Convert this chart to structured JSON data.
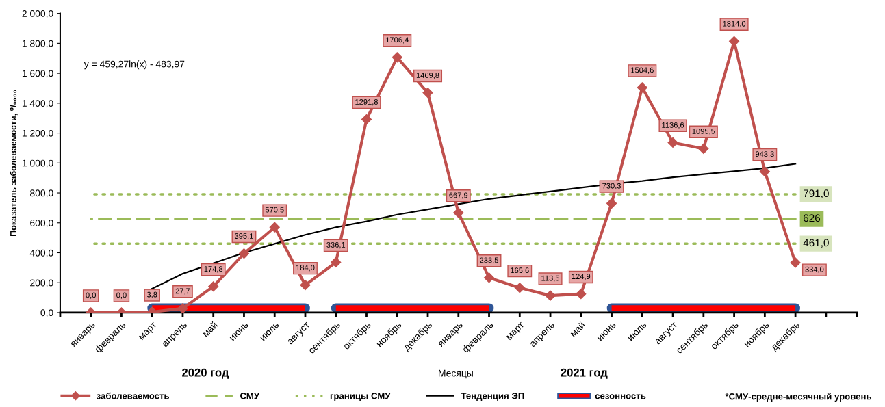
{
  "chart_data": {
    "type": "line",
    "ylabel": "Показатель заболеваемости, ⁰/₀₀₀₀",
    "categories": [
      "январь",
      "февраль",
      "март",
      "апрель",
      "май",
      "июнь",
      "июль",
      "август",
      "сентябрь",
      "октябрь",
      "ноябрь",
      "декабрь",
      "январь",
      "февраль",
      "март",
      "апрель",
      "май",
      "июнь",
      "июль",
      "август",
      "сентябрь",
      "октябрь",
      "ноябрь",
      "декабрь"
    ],
    "series": [
      {
        "name": "заболеваемость",
        "color": "#c0504d",
        "marker": "diamond",
        "values": [
          0.0,
          0.0,
          3.8,
          27.7,
          174.8,
          395.1,
          570.5,
          184.0,
          336.1,
          1291.8,
          1706.4,
          1469.8,
          667.9,
          233.5,
          165.6,
          113.5,
          124.9,
          730.3,
          1504.6,
          1136.6,
          1095.5,
          1814.0,
          943.3,
          334.0
        ],
        "value_labels": [
          "0,0",
          "0,0",
          "3,8",
          "27,7",
          "174,8",
          "395,1",
          "570,5",
          "184,0",
          "336,1",
          "1291,8",
          "1706,4",
          "1469,8",
          "667,9",
          "233,5",
          "165,6",
          "113,5",
          "124,9",
          "730,3",
          "1504,6",
          "1136,6",
          "1095,5",
          "1814,0",
          "943,3",
          "334,0"
        ]
      },
      {
        "name": "СМУ",
        "color": "#9bbb59",
        "line_style": "dashed",
        "values": [
          626,
          626,
          626,
          626,
          626,
          626,
          626,
          626,
          626,
          626,
          626,
          626,
          626,
          626,
          626,
          626,
          626,
          626,
          626,
          626,
          626,
          626,
          626,
          626
        ],
        "value_labels": [
          null,
          null,
          null,
          null,
          null,
          null,
          null,
          null,
          null,
          null,
          null,
          null,
          null,
          null,
          null,
          null,
          null,
          null,
          null,
          null,
          null,
          null,
          null,
          "626"
        ]
      },
      {
        "name": "границы СМУ",
        "color": "#9bbb59",
        "line_style": "dotted",
        "values": [
          791,
          791,
          791,
          791,
          791,
          791,
          791,
          791,
          791,
          791,
          791,
          791,
          791,
          791,
          791,
          791,
          791,
          791,
          791,
          791,
          791,
          791,
          791,
          791
        ],
        "value_labels": [
          null,
          null,
          null,
          null,
          null,
          null,
          null,
          null,
          null,
          null,
          null,
          null,
          null,
          null,
          null,
          null,
          null,
          null,
          null,
          null,
          null,
          null,
          null,
          "791,0"
        ]
      },
      {
        "color": "#9bbb59",
        "line_style": "dotted",
        "values": [
          461,
          461,
          461,
          461,
          461,
          461,
          461,
          461,
          461,
          461,
          461,
          461,
          461,
          461,
          461,
          461,
          461,
          461,
          461,
          461,
          461,
          461,
          461,
          461
        ],
        "value_labels": [
          null,
          null,
          null,
          null,
          null,
          null,
          null,
          null,
          null,
          null,
          null,
          null,
          null,
          null,
          null,
          null,
          null,
          null,
          null,
          null,
          null,
          null,
          null,
          "461,0"
        ]
      },
      {
        "name": "Тенденция ЭП",
        "color": "#000000",
        "values": [
          null,
          null,
          160,
          260,
          330,
          400,
          460,
          520,
          570,
          610,
          655,
          690,
          725,
          760,
          785,
          810,
          835,
          860,
          880,
          905,
          925,
          945,
          965,
          995
        ]
      },
      {
        "name": "сезонность",
        "color": "#ff0000",
        "values": [
          null,
          null,
          30,
          30,
          30,
          30,
          30,
          30,
          null,
          null,
          null,
          null,
          null,
          null,
          null,
          null,
          null,
          30,
          30,
          30,
          30,
          30,
          30,
          30
        ]
      },
      {
        "color": "#fe0000",
        "values": [
          null,
          null,
          null,
          null,
          null,
          null,
          null,
          null,
          30,
          30,
          30,
          30,
          30,
          30,
          null,
          null,
          null,
          null,
          null,
          null,
          null,
          null,
          null,
          null
        ]
      }
    ],
    "ylim": [
      0,
      2000
    ],
    "yticks": [
      {
        "value": 0,
        "label": "0,0"
      },
      {
        "value": 200,
        "label": "200,0"
      },
      {
        "value": 400,
        "label": "400,0"
      },
      {
        "value": 600,
        "label": "600,0"
      },
      {
        "value": 800,
        "label": "800,0"
      },
      {
        "value": 1000,
        "label": "1 000,0"
      },
      {
        "value": 1200,
        "label": "1 200,0"
      },
      {
        "value": 1400,
        "label": "1 400,0"
      },
      {
        "value": 1600,
        "label": "1 600,0"
      },
      {
        "value": 1800,
        "label": "1 800,0"
      },
      {
        "value": 2000,
        "label": "2 000,0"
      }
    ],
    "grid": false,
    "legend": "bottom",
    "annotations": [
      "y = 459,27ln(x) - 483,97",
      "2020 год",
      "Месяцы",
      "2021 год",
      "*СМУ-средне-месячный уровень"
    ]
  }
}
